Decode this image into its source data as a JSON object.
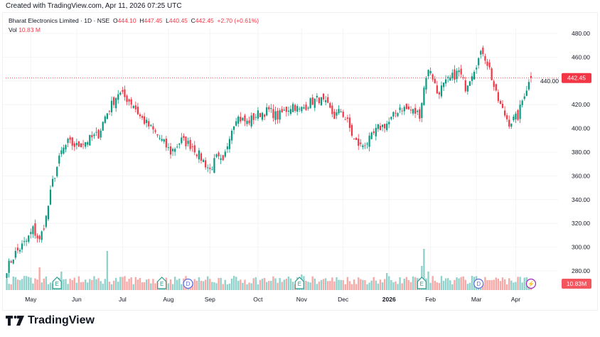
{
  "header": {
    "created": "Created with TradingView.com, Apr 11, 2026 07:25 UTC"
  },
  "legend": {
    "symbol": "Bharat Electronics Limited · 1D · NSE",
    "o_label": "O",
    "o": "444.10",
    "h_label": "H",
    "h": "447.45",
    "l_label": "L",
    "l": "440.45",
    "c_label": "C",
    "c": "442.45",
    "change": "+2.70 (+0.61%)",
    "vol_label": "Vol",
    "vol": "10.83 M"
  },
  "colors": {
    "up": "#089981",
    "down": "#f23645",
    "vol_up": "#92d2cc",
    "vol_down": "#f7a9a7",
    "grid": "#f3f4f6",
    "event_e": "#2a9d8f",
    "event_d": "#5b6ee1",
    "event_x": "#9c27b0"
  },
  "chart_data": {
    "type": "candlestick",
    "title": "Bharat Electronics Limited · 1D · NSE",
    "ylim": [
      270,
      485
    ],
    "y_ticks": [
      "480.00",
      "460.00",
      "440.00",
      "420.00",
      "400.00",
      "380.00",
      "360.00",
      "340.00",
      "320.00",
      "300.00",
      "280.00"
    ],
    "x_ticks": [
      "May",
      "Jun",
      "Jul",
      "Aug",
      "Sep",
      "Oct",
      "Nov",
      "Dec",
      "2026",
      "Feb",
      "Mar",
      "Apr"
    ],
    "x_tick_days": [
      11,
      32,
      53,
      74,
      93,
      115,
      135,
      154,
      175,
      194,
      215,
      233
    ],
    "total_days": 248,
    "close_path": [
      [
        0,
        282
      ],
      [
        4,
        295
      ],
      [
        9,
        305
      ],
      [
        12,
        315
      ],
      [
        15,
        305
      ],
      [
        18,
        325
      ],
      [
        21,
        355
      ],
      [
        25,
        380
      ],
      [
        28,
        388
      ],
      [
        32,
        385
      ],
      [
        37,
        390
      ],
      [
        42,
        395
      ],
      [
        45,
        410
      ],
      [
        48,
        420
      ],
      [
        51,
        430
      ],
      [
        55,
        425
      ],
      [
        58,
        420
      ],
      [
        61,
        410
      ],
      [
        66,
        400
      ],
      [
        70,
        392
      ],
      [
        75,
        380
      ],
      [
        80,
        390
      ],
      [
        85,
        385
      ],
      [
        89,
        375
      ],
      [
        93,
        365
      ],
      [
        96,
        375
      ],
      [
        99,
        370
      ],
      [
        102,
        395
      ],
      [
        105,
        410
      ],
      [
        110,
        405
      ],
      [
        115,
        412
      ],
      [
        120,
        415
      ],
      [
        124,
        410
      ],
      [
        131,
        420
      ],
      [
        134,
        415
      ],
      [
        139,
        422
      ],
      [
        143,
        425
      ],
      [
        147,
        418
      ],
      [
        150,
        410
      ],
      [
        153,
        415
      ],
      [
        156,
        405
      ],
      [
        159,
        390
      ],
      [
        162,
        385
      ],
      [
        166,
        390
      ],
      [
        170,
        400
      ],
      [
        175,
        405
      ],
      [
        180,
        418
      ],
      [
        185,
        415
      ],
      [
        189,
        412
      ],
      [
        192,
        445
      ],
      [
        194,
        450
      ],
      [
        197,
        430
      ],
      [
        202,
        440
      ],
      [
        207,
        448
      ],
      [
        210,
        435
      ],
      [
        215,
        455
      ],
      [
        218,
        465
      ],
      [
        221,
        450
      ],
      [
        224,
        428
      ],
      [
        227,
        415
      ],
      [
        230,
        405
      ],
      [
        234,
        410
      ],
      [
        237,
        430
      ],
      [
        240,
        442.45
      ]
    ],
    "last_price": "442.45",
    "last_volume": "10.83M",
    "volume_spikes": [
      [
        15,
        3.2
      ],
      [
        25,
        2.6
      ],
      [
        46,
        5.5
      ],
      [
        135,
        2.2
      ],
      [
        174,
        2.4
      ],
      [
        190,
        3.4
      ],
      [
        191,
        5.8
      ],
      [
        193,
        2.6
      ],
      [
        213,
        2.0
      ]
    ],
    "events": [
      {
        "type": "E",
        "day": 23
      },
      {
        "type": "E",
        "day": 71
      },
      {
        "type": "D",
        "day": 83
      },
      {
        "type": "E",
        "day": 134
      },
      {
        "type": "E",
        "day": 190
      },
      {
        "type": "D",
        "day": 216
      },
      {
        "type": "split",
        "day": 240
      }
    ],
    "event_glyphs": {
      "E": "E",
      "D": "D",
      "split": "⚡"
    }
  },
  "brand": {
    "name": "TradingView"
  }
}
